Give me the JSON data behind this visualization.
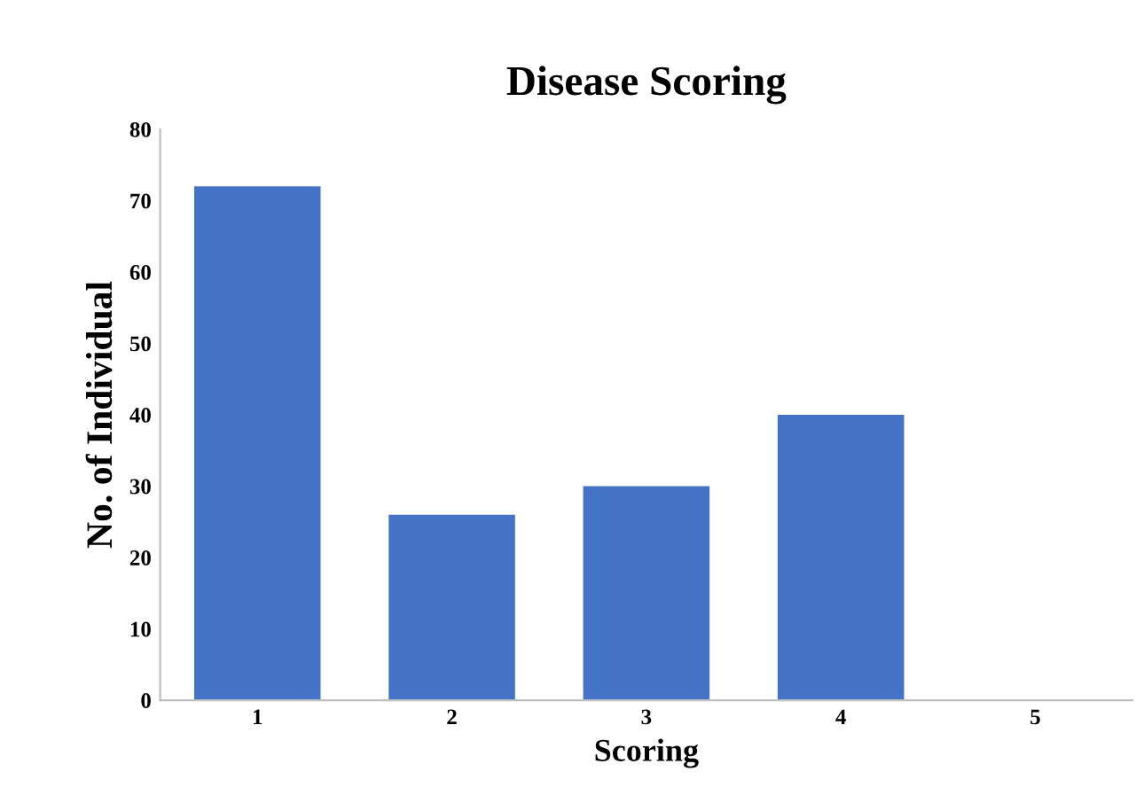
{
  "chart_data": {
    "type": "bar",
    "title": "Disease Scoring",
    "xlabel": "Scoring",
    "ylabel": "No. of Individual",
    "categories": [
      "1",
      "2",
      "3",
      "4",
      "5"
    ],
    "values": [
      72,
      26,
      30,
      40,
      0
    ],
    "color": "#4472c4",
    "ylim": [
      0,
      80
    ],
    "yticks": [
      0,
      10,
      20,
      30,
      40,
      50,
      60,
      70,
      80
    ],
    "grid": false,
    "legend": false
  }
}
